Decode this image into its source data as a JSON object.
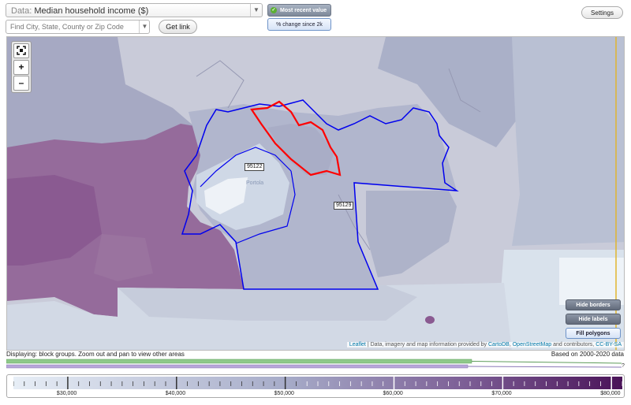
{
  "header": {
    "data_prefix": "Data:",
    "data_value": "Median household income ($)",
    "find_placeholder": "Find City, State, County or Zip Code",
    "get_link_label": "Get link",
    "most_recent_label": "Most recent value",
    "pct_change_label": "% change since 2k",
    "settings_label": "Settings"
  },
  "map": {
    "zoom_in": "+",
    "zoom_out": "–",
    "zip_labels": [
      "95122",
      "95129"
    ],
    "town_label": "Portola",
    "hide_borders_label": "Hide borders",
    "hide_labels_label": "Hide labels",
    "fill_polygons_label": "Fill polygons",
    "attribution": {
      "leaflet": "Leaflet",
      "text1": " | Data, imagery and map information provided by ",
      "cartodb": "CartoDB",
      "text2": ", ",
      "osm": "OpenStreetMap",
      "text3": " and contributors, ",
      "license": "CC-BY-SA"
    }
  },
  "footer": {
    "displaying": "Displaying: block groups. Zoom out and pan to view other areas",
    "based_on": "Based on 2000-2020 data",
    "legend_labels": [
      "$30,000",
      "$40,000",
      "$50,000",
      "$60,000",
      "$70,000",
      "$80,000"
    ],
    "legend_min": 25000,
    "legend_max": 81000
  },
  "colors": {
    "low": "#e7eef6",
    "mid": "#9ea5c5",
    "high": "#511a5f",
    "border_blue": "#0000ee",
    "border_red": "#ff0000"
  }
}
